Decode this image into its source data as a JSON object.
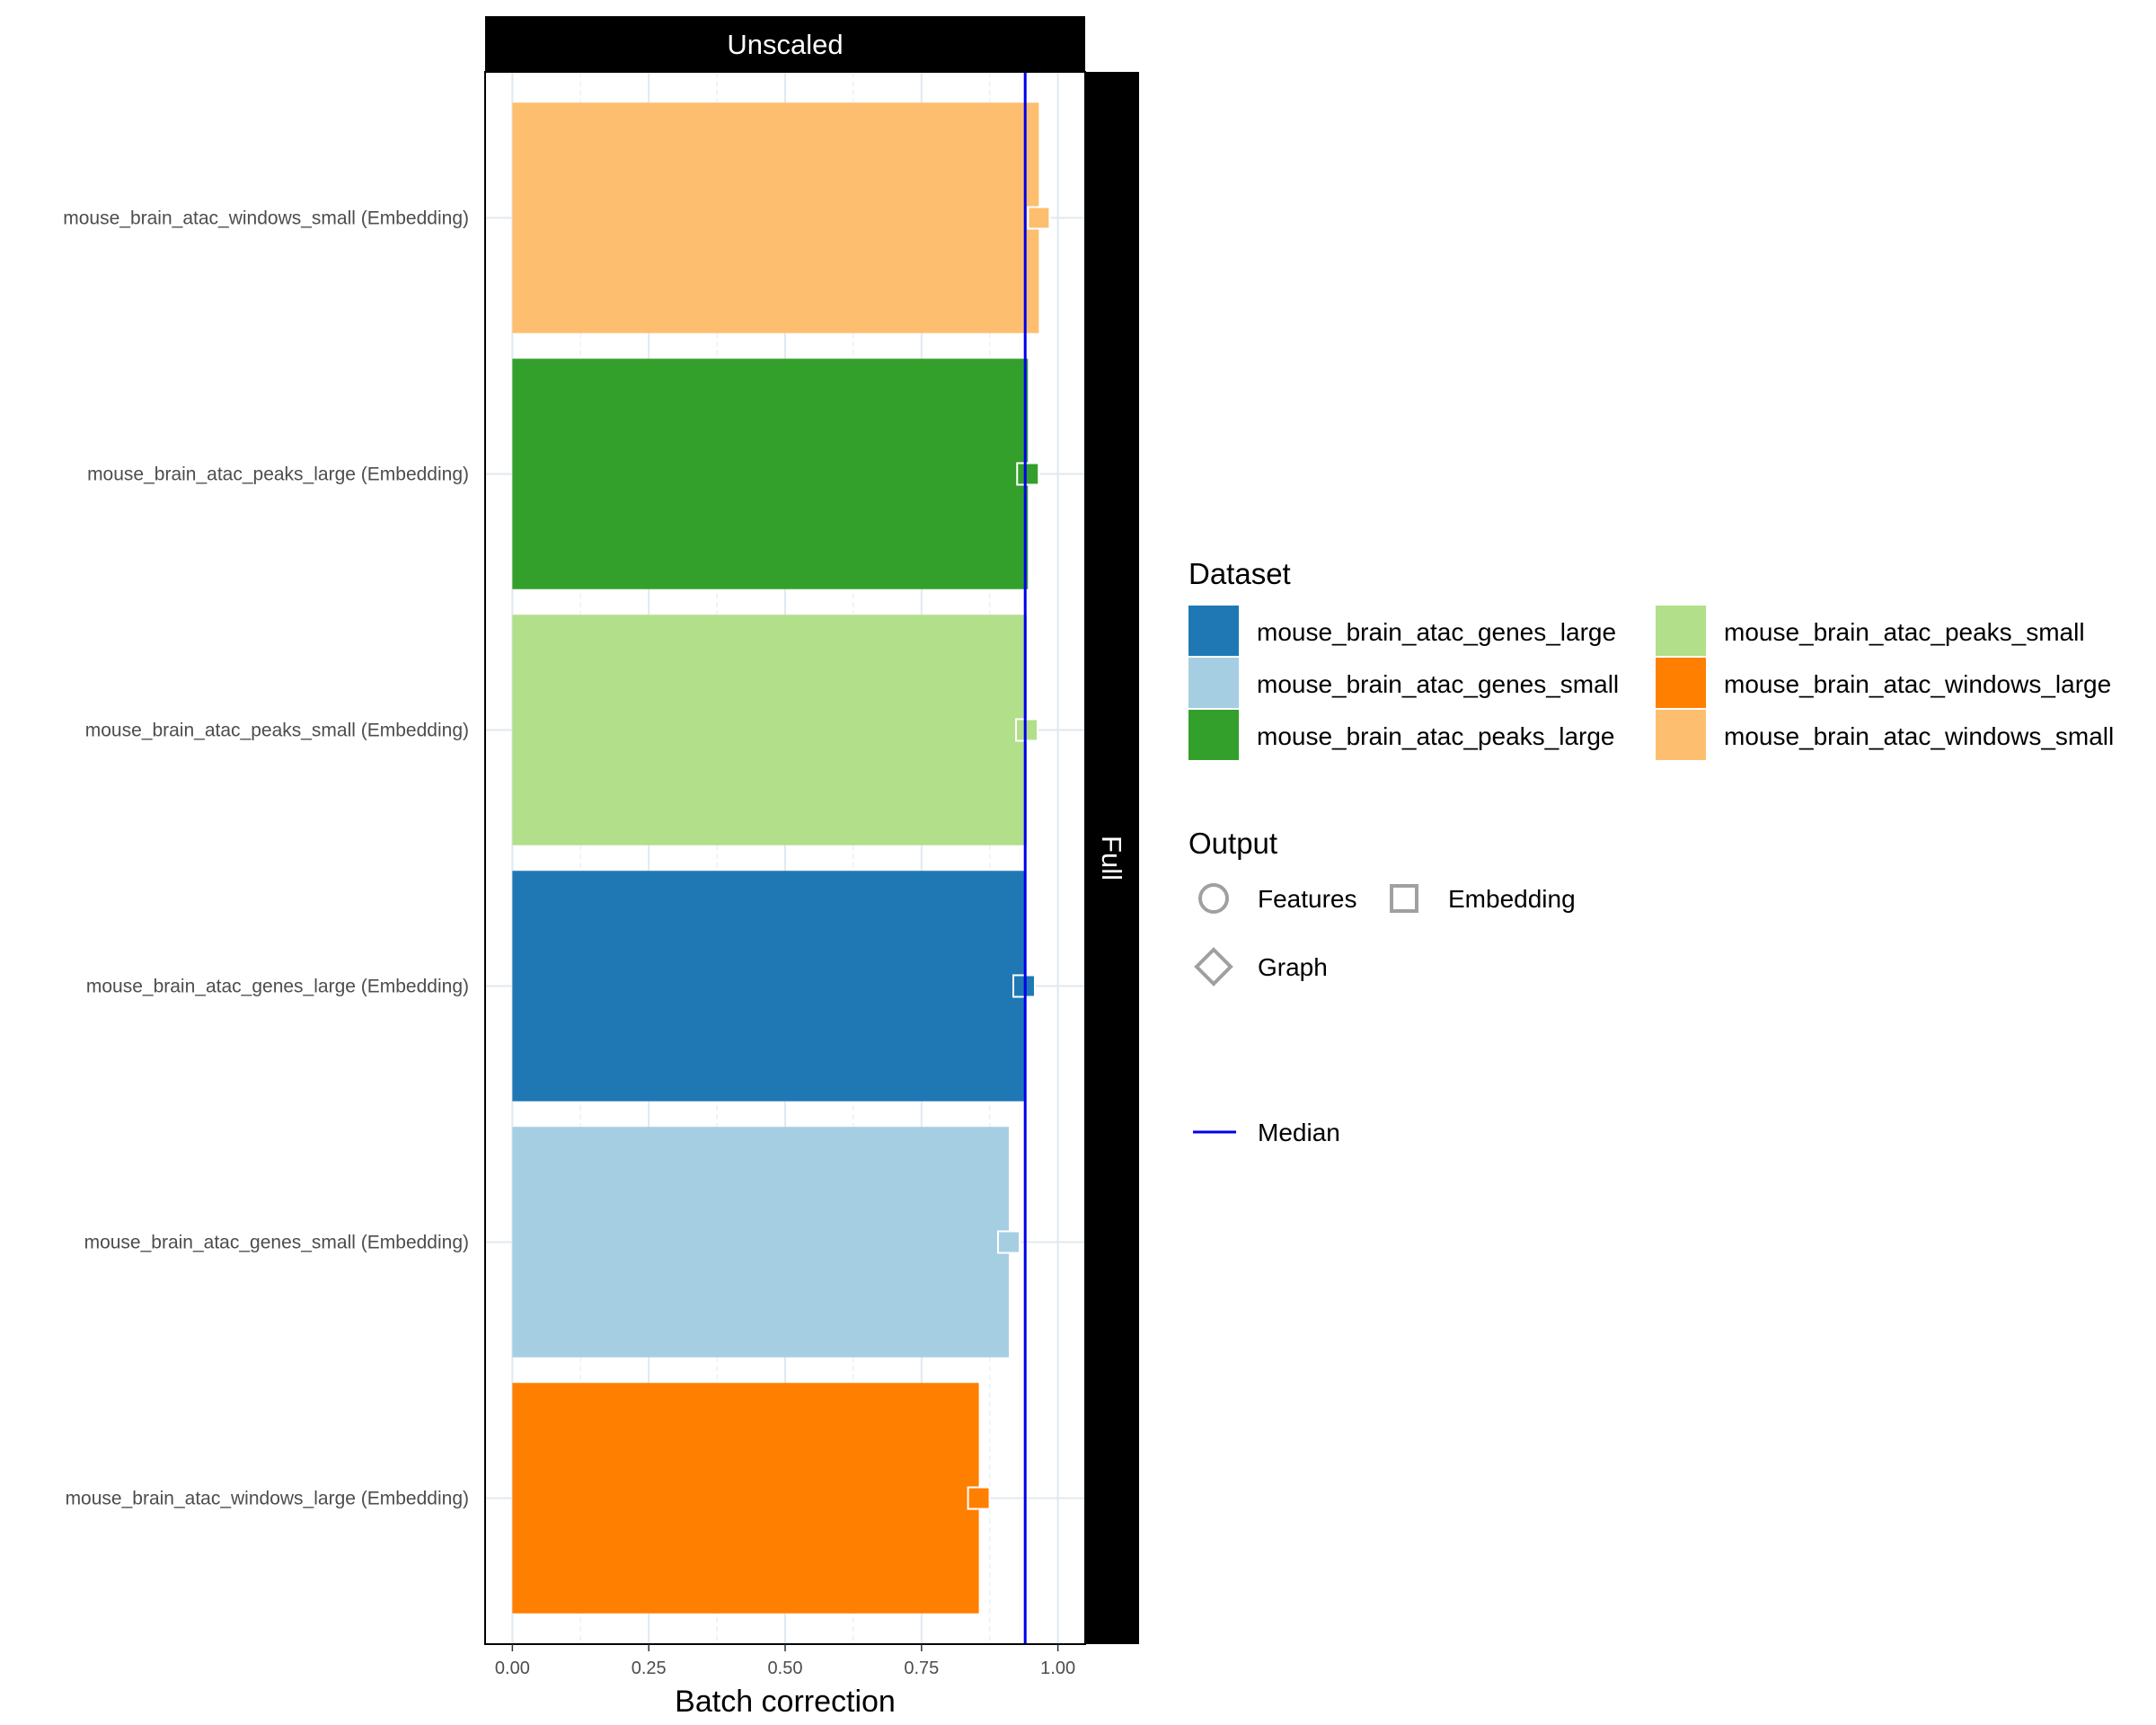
{
  "chart_data": {
    "type": "bar",
    "orientation": "horizontal",
    "facet_top": "Unscaled",
    "facet_right": "Full",
    "xlabel": "Batch correction",
    "xlim": [
      -0.05,
      1.05
    ],
    "x_ticks": [
      "0.00",
      "0.25",
      "0.50",
      "0.75",
      "1.00"
    ],
    "x_tick_values": [
      0,
      0.25,
      0.5,
      0.75,
      1.0
    ],
    "grid": true,
    "median": 0.94,
    "categories": [
      "mouse_brain_atac_windows_small (Embedding)",
      "mouse_brain_atac_peaks_large (Embedding)",
      "mouse_brain_atac_peaks_small (Embedding)",
      "mouse_brain_atac_genes_large (Embedding)",
      "mouse_brain_atac_genes_small (Embedding)",
      "mouse_brain_atac_windows_large (Embedding)"
    ],
    "values": [
      0.965,
      0.945,
      0.943,
      0.938,
      0.91,
      0.855
    ],
    "datasets": [
      "mouse_brain_atac_windows_small",
      "mouse_brain_atac_peaks_large",
      "mouse_brain_atac_peaks_small",
      "mouse_brain_atac_genes_large",
      "mouse_brain_atac_genes_small",
      "mouse_brain_atac_windows_large"
    ],
    "outputs": [
      "Embedding",
      "Embedding",
      "Embedding",
      "Embedding",
      "Embedding",
      "Embedding"
    ],
    "legend": {
      "placement": "right",
      "dataset_title": "Dataset",
      "dataset_items": [
        {
          "label": "mouse_brain_atac_genes_large",
          "color": "#1f78b4"
        },
        {
          "label": "mouse_brain_atac_genes_small",
          "color": "#a6cee3"
        },
        {
          "label": "mouse_brain_atac_peaks_large",
          "color": "#33a02c"
        },
        {
          "label": "mouse_brain_atac_peaks_small",
          "color": "#b2df8a"
        },
        {
          "label": "mouse_brain_atac_windows_large",
          "color": "#ff7f00"
        },
        {
          "label": "mouse_brain_atac_windows_small",
          "color": "#fdbf6f"
        }
      ],
      "output_title": "Output",
      "output_items": [
        {
          "label": "Features",
          "shape": "circle"
        },
        {
          "label": "Embedding",
          "shape": "square"
        },
        {
          "label": "Graph",
          "shape": "diamond"
        }
      ],
      "median_label": "Median",
      "median_color": "#0000ee"
    }
  }
}
